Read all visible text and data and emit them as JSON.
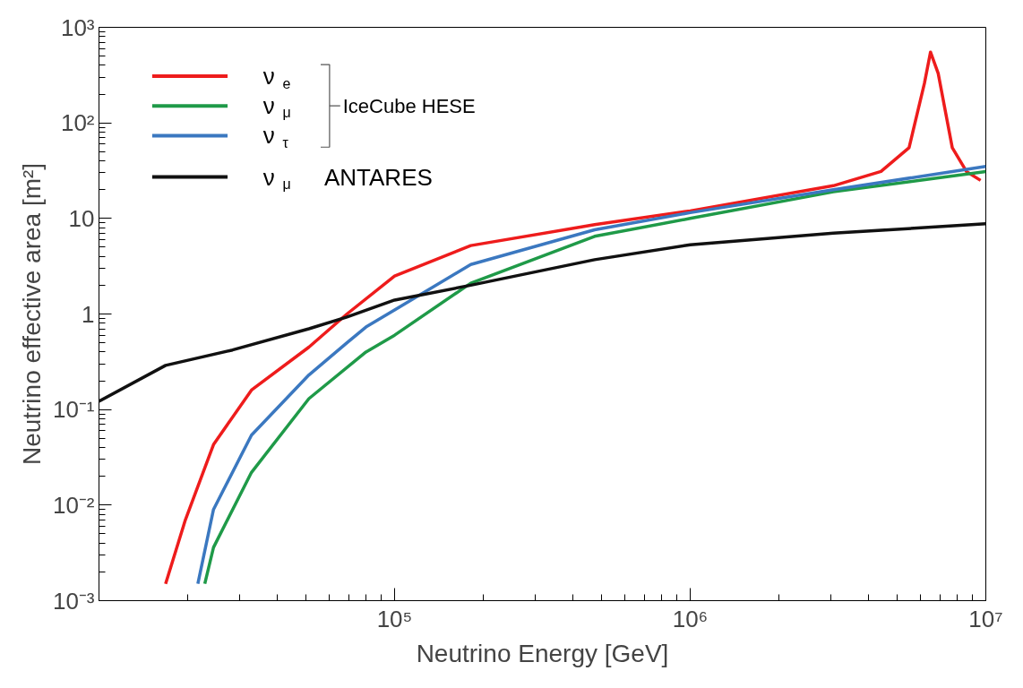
{
  "chart_data": {
    "type": "line",
    "xlabel": "Neutrino Energy [GeV]",
    "ylabel": "Neutrino effective area [m²]",
    "log": "xy",
    "grid": false,
    "legend": "top left",
    "marker": "none",
    "line_style": "solid",
    "xlim": [
      10000,
      10000000
    ],
    "xticks": [
      {
        "value": 10000,
        "label": null
      },
      {
        "value": 100000,
        "label": "10⁵"
      },
      {
        "value": 1000000,
        "label": "10⁶"
      },
      {
        "value": 10000000,
        "label": "10⁷"
      }
    ],
    "ylim": [
      0.001,
      1000
    ],
    "yticks": [
      {
        "value": 0.001,
        "label": "10⁻³"
      },
      {
        "value": 0.01,
        "label": "10⁻²"
      },
      {
        "value": 0.1,
        "label": "10⁻¹"
      },
      1,
      10,
      {
        "value": 100,
        "label": "10²"
      },
      {
        "value": 1000,
        "label": "10³"
      }
    ],
    "annotations": [
      "IceCube HESE"
    ],
    "series": [
      {
        "name": "ν$_{e}$",
        "color": "#ee1c1c",
        "x": [
          16800,
          19600,
          24400,
          32800,
          51300,
          69000,
          100000,
          181000,
          475000,
          1000000,
          3050000,
          4420000,
          5500000,
          6200000,
          6500000,
          6900000,
          7700000,
          8600000,
          9600000
        ],
        "values": [
          0.0015,
          0.007,
          0.043,
          0.16,
          0.45,
          1.0,
          2.5,
          5.2,
          8.6,
          12,
          22,
          31,
          55,
          260,
          550,
          330,
          55,
          31,
          25
        ]
      },
      {
        "name": "ν$_{μ}$",
        "color": "#1f9a48",
        "x": [
          22800,
          24400,
          32800,
          51300,
          80000,
          100000,
          181000,
          475000,
          1000000,
          3050000,
          10000000
        ],
        "values": [
          0.0015,
          0.0036,
          0.022,
          0.13,
          0.4,
          0.6,
          2.1,
          6.5,
          10,
          19,
          31
        ]
      },
      {
        "name": "ν$_{τ}$",
        "color": "#3b78c0",
        "x": [
          21600,
          24400,
          32800,
          51300,
          69000,
          80000,
          100000,
          181000,
          475000,
          1000000,
          3050000,
          10000000
        ],
        "values": [
          0.0015,
          0.009,
          0.054,
          0.23,
          0.5,
          0.73,
          1.1,
          3.3,
          7.6,
          11.5,
          20,
          35
        ]
      },
      {
        "name": "ν$_{μ}$ ANTARES",
        "color": "#111111",
        "x": [
          10000,
          16800,
          28300,
          51300,
          69000,
          100000,
          181000,
          475000,
          1000000,
          3050000,
          10000000
        ],
        "values": [
          0.122,
          0.29,
          0.42,
          0.7,
          0.93,
          1.4,
          2.0,
          3.7,
          5.3,
          7.0,
          8.8
        ]
      }
    ]
  }
}
